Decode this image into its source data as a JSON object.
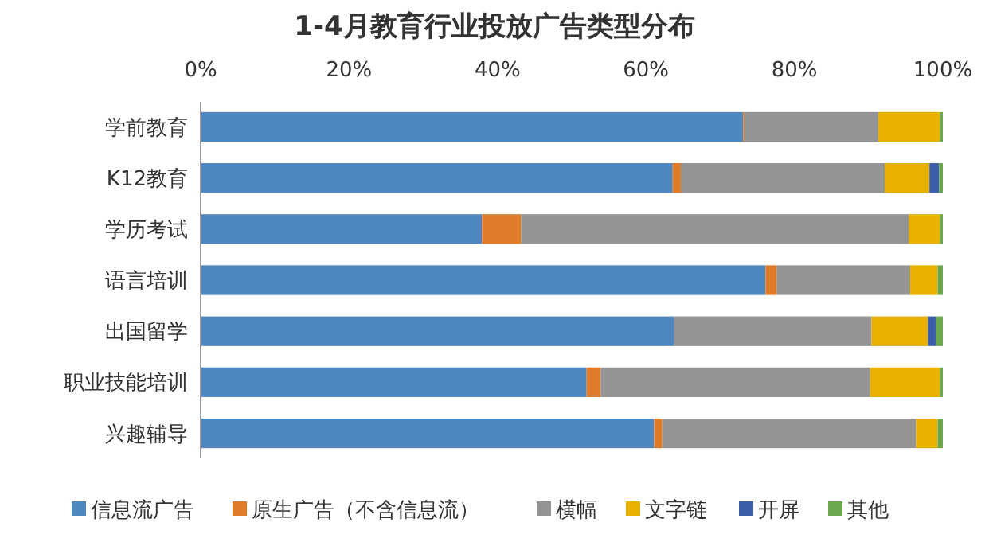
{
  "chart_data": {
    "type": "bar",
    "orientation": "horizontal",
    "stacked": true,
    "title": "1-4月教育行业投放广告类型分布",
    "categories": [
      "学前教育",
      "K12教育",
      "学历考试",
      "语言培训",
      "出国留学",
      "职业技能培训",
      "兴趣辅导"
    ],
    "xlim": [
      0,
      100
    ],
    "xticks": [
      {
        "value": 0,
        "label": "0%"
      },
      {
        "value": 20,
        "label": "20%"
      },
      {
        "value": 40,
        "label": "40%"
      },
      {
        "value": 60,
        "label": "60%"
      },
      {
        "value": 80,
        "label": "80%"
      },
      {
        "value": 100,
        "label": "100%"
      }
    ],
    "grid": false,
    "legend": "bottom",
    "series": [
      {
        "name": "信息流广告",
        "color": "#4f87c0",
        "values": [
          73.1,
          63.6,
          37.9,
          76.1,
          63.8,
          52.0,
          61.1
        ]
      },
      {
        "name": "原生广告（不含信息流）",
        "color": "#e07b2a",
        "values": [
          0.2,
          1.1,
          5.3,
          1.5,
          0,
          1.9,
          1.1
        ]
      },
      {
        "name": "横幅",
        "color": "#949494",
        "values": [
          18.0,
          27.5,
          52.2,
          18.0,
          26.6,
          36.3,
          34.2
        ]
      },
      {
        "name": "文字链",
        "color": "#e8b000",
        "values": [
          8.3,
          6.0,
          4.2,
          3.7,
          7.6,
          9.4,
          2.9
        ]
      },
      {
        "name": "开屏",
        "color": "#3b5fa8",
        "values": [
          0,
          1.3,
          0,
          0,
          1.1,
          0,
          0
        ]
      },
      {
        "name": "其他",
        "color": "#6aa84f",
        "values": [
          0.4,
          0.5,
          0.4,
          0.7,
          0.9,
          0.4,
          0.7
        ]
      }
    ]
  }
}
